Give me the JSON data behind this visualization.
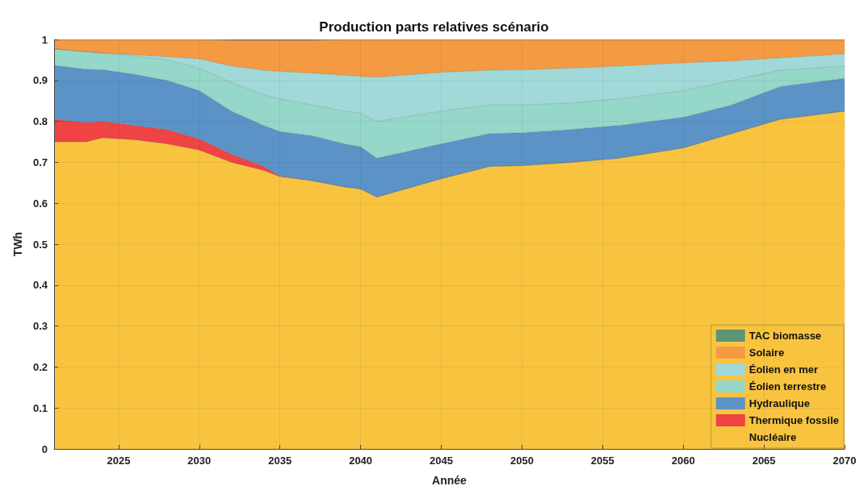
{
  "chart_data": {
    "type": "area",
    "stacked": true,
    "title": "Production parts relatives scénario",
    "xlabel": "Année",
    "ylabel": "TWh",
    "x": [
      2021,
      2023,
      2024,
      2026,
      2028,
      2030,
      2032,
      2034,
      2035,
      2037,
      2039,
      2040,
      2041,
      2045,
      2048,
      2050,
      2053,
      2056,
      2060,
      2063,
      2066,
      2070
    ],
    "series": [
      {
        "name": "Nucléaire",
        "color": "#f8c440",
        "values": [
          0.75,
          0.75,
          0.76,
          0.755,
          0.745,
          0.73,
          0.7,
          0.68,
          0.665,
          0.655,
          0.64,
          0.635,
          0.615,
          0.66,
          0.69,
          0.692,
          0.7,
          0.71,
          0.735,
          0.77,
          0.805,
          0.825
        ]
      },
      {
        "name": "Thermique fossile",
        "color": "#f04343",
        "values": [
          0.055,
          0.047,
          0.04,
          0.035,
          0.035,
          0.027,
          0.02,
          0.01,
          0.002,
          0,
          0,
          0,
          0,
          0,
          0,
          0,
          0,
          0,
          0,
          0,
          0,
          0
        ]
      },
      {
        "name": "Hydraulique",
        "color": "#5b93c7",
        "values": [
          0.132,
          0.13,
          0.126,
          0.125,
          0.12,
          0.118,
          0.105,
          0.1,
          0.108,
          0.11,
          0.105,
          0.103,
          0.095,
          0.085,
          0.08,
          0.08,
          0.08,
          0.08,
          0.075,
          0.07,
          0.08,
          0.08
        ]
      },
      {
        "name": "Éolien terrestre",
        "color": "#95d7c8",
        "values": [
          0.04,
          0.043,
          0.041,
          0.045,
          0.05,
          0.055,
          0.07,
          0.075,
          0.08,
          0.075,
          0.08,
          0.082,
          0.09,
          0.08,
          0.07,
          0.068,
          0.065,
          0.065,
          0.065,
          0.06,
          0.04,
          0.03
        ]
      },
      {
        "name": "Éolien en mer",
        "color": "#a1d9d9",
        "values": [
          0,
          0,
          0,
          0.003,
          0.008,
          0.023,
          0.04,
          0.06,
          0.067,
          0.078,
          0.088,
          0.09,
          0.108,
          0.095,
          0.085,
          0.086,
          0.085,
          0.08,
          0.068,
          0.048,
          0.03,
          0.03
        ]
      },
      {
        "name": "Solaire",
        "color": "#f39a43",
        "values": [
          0.023,
          0.03,
          0.033,
          0.037,
          0.042,
          0.047,
          0.063,
          0.073,
          0.076,
          0.08,
          0.087,
          0.09,
          0.092,
          0.08,
          0.075,
          0.074,
          0.07,
          0.065,
          0.057,
          0.052,
          0.045,
          0.035
        ]
      },
      {
        "name": "TAC biomasse",
        "color": "#5e9473",
        "values": [
          0,
          0,
          0,
          0,
          0,
          0,
          0.002,
          0.002,
          0.002,
          0.002,
          0,
          0,
          0,
          0,
          0,
          0,
          0,
          0,
          0,
          0,
          0,
          0
        ]
      }
    ],
    "xlim": [
      2021,
      2070
    ],
    "xticks": [
      2025,
      2030,
      2035,
      2040,
      2045,
      2050,
      2055,
      2060,
      2065,
      2070
    ],
    "ylim": [
      0,
      1
    ],
    "yticks": [
      0,
      0.1,
      0.2,
      0.3,
      0.4,
      0.5,
      0.6,
      0.7,
      0.8,
      0.9,
      1
    ],
    "grid": true,
    "legend": "bottom right"
  }
}
